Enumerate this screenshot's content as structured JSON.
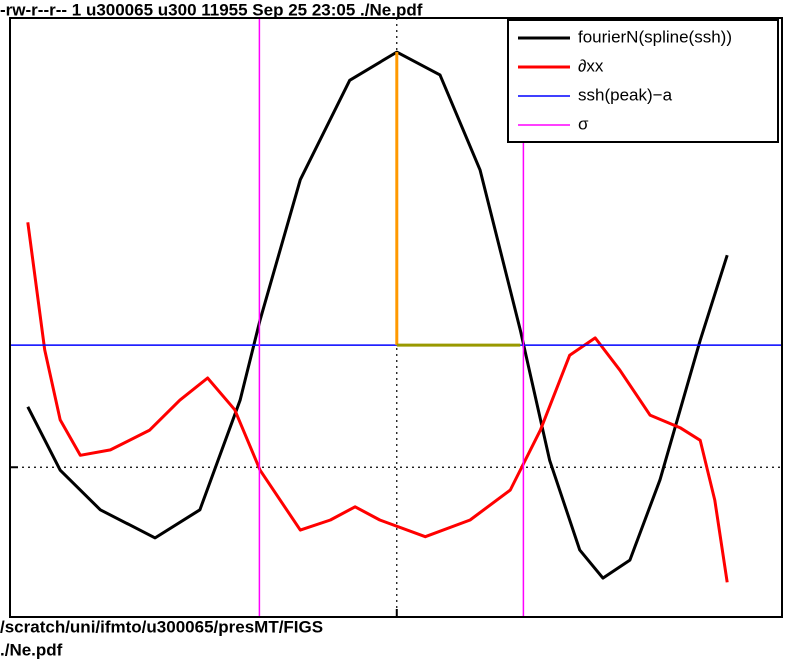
{
  "chart_data": {
    "type": "line",
    "header": "-rw-r--r-- 1 u300065 u300 11955 Sep 25 23:05 ./Ne.pdf",
    "footer": [
      "/scratch/uni/ifmto/u300065/presMT/FIGS",
      "./Ne.pdf"
    ],
    "xlim": [
      0,
      100
    ],
    "ylim": [
      0,
      100
    ],
    "ref_x": 50.1,
    "ref_y": 25.0,
    "legend": "top-right",
    "series": [
      {
        "name": "fourierN(spline(ssh))",
        "color": "#000000",
        "x": [
          2.3,
          6.5,
          11.7,
          18.8,
          24.6,
          29.8,
          32.4,
          37.6,
          44.0,
          50.1,
          55.7,
          60.9,
          66.1,
          69.9,
          73.8,
          76.8,
          80.3,
          84.2,
          89.4,
          92.9
        ],
        "values": [
          35.1,
          24.5,
          17.9,
          13.2,
          17.9,
          36.2,
          49.6,
          73.0,
          89.6,
          94.3,
          90.5,
          74.6,
          47.9,
          26.2,
          11.2,
          6.5,
          9.5,
          22.9,
          46.2,
          60.4
        ]
      },
      {
        "name": "∂xx",
        "color": "#ff0000",
        "x": [
          2.3,
          4.5,
          6.5,
          9.1,
          13.0,
          18.1,
          22.0,
          25.6,
          29.1,
          32.4,
          37.6,
          41.5,
          44.7,
          47.9,
          53.8,
          59.6,
          64.8,
          68.7,
          72.5,
          75.8,
          79.0,
          82.9,
          86.8,
          89.4,
          91.3,
          92.9
        ],
        "values": [
          65.9,
          44.6,
          32.9,
          27.0,
          27.9,
          31.2,
          36.2,
          39.9,
          34.6,
          24.5,
          14.5,
          16.2,
          18.4,
          16.2,
          13.4,
          16.2,
          21.2,
          31.2,
          43.7,
          46.6,
          41.2,
          33.7,
          31.6,
          29.5,
          19.5,
          5.8
        ]
      },
      {
        "name": "ssh(peak)−a",
        "color": "#0000ff",
        "x": [
          0,
          100
        ],
        "values": [
          45.4,
          45.4
        ]
      },
      {
        "name": "σ",
        "color": "#ff00ff",
        "x": [
          32.3,
          32.3,
          null,
          66.5,
          66.5
        ],
        "values": [
          0,
          100,
          null,
          0,
          100
        ]
      },
      {
        "color": "#ff9900",
        "x": [
          50.1,
          50.1
        ],
        "values": [
          94.3,
          45.4
        ]
      },
      {
        "color": "#999900",
        "x": [
          50.1,
          66.1
        ],
        "values": [
          45.4,
          45.4
        ]
      }
    ]
  }
}
